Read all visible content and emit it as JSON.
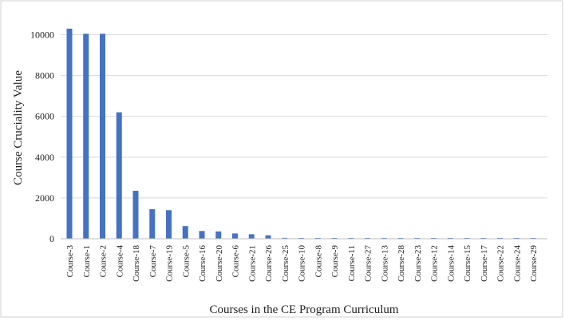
{
  "chart_data": {
    "type": "bar",
    "categories": [
      "Course-3",
      "Course-1",
      "Course-2",
      "Course-4",
      "Course-18",
      "Course-7",
      "Course-19",
      "Course-5",
      "Course-16",
      "Course-20",
      "Course-6",
      "Course-21",
      "Course-26",
      "Course-25",
      "Course-10",
      "Course-8",
      "Course-9",
      "Course-11",
      "Course-27",
      "Course-13",
      "Course-28",
      "Course-23",
      "Course-12",
      "Course-14",
      "Course-15",
      "Course-17",
      "Course-22",
      "Course-24",
      "Course-29"
    ],
    "values": [
      10300,
      10050,
      10050,
      6200,
      2350,
      1450,
      1400,
      620,
      380,
      360,
      260,
      220,
      170,
      45,
      40,
      40,
      40,
      40,
      40,
      40,
      40,
      40,
      40,
      40,
      40,
      40,
      40,
      40,
      40
    ],
    "title": "",
    "xlabel": "Courses in the CE Program Curriculum",
    "ylabel": "Course Cruciality Value",
    "ylim": [
      0,
      11000
    ],
    "yticks": [
      0,
      2000,
      4000,
      6000,
      8000,
      10000
    ],
    "grid": true,
    "bar_color": "#4472c4"
  }
}
